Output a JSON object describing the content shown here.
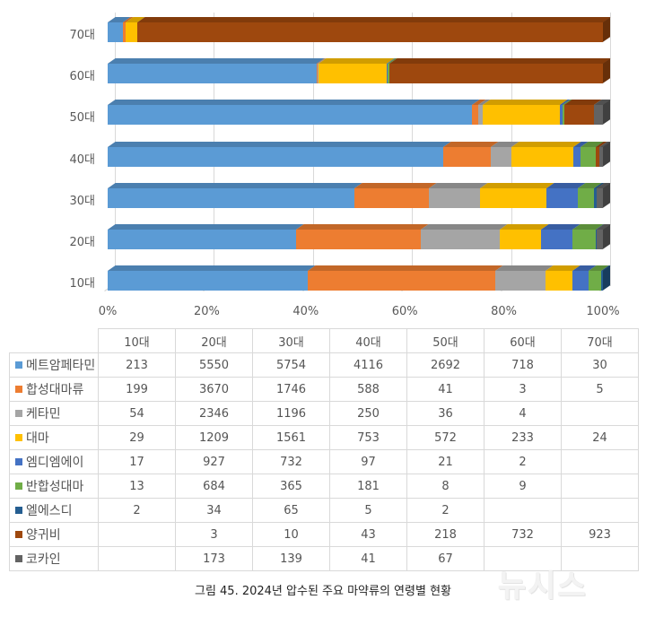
{
  "caption": "그림 45. 2024년 압수된 주요 마약류의 연령별 현황",
  "watermark": "뉴시스",
  "table": {
    "columns": [
      "10대",
      "20대",
      "30대",
      "40대",
      "50대",
      "60대",
      "70대"
    ],
    "rows": [
      {
        "name": "메트암페타민",
        "color": "#5b9bd5",
        "values": [
          "213",
          "5550",
          "5754",
          "4116",
          "2692",
          "718",
          "30"
        ]
      },
      {
        "name": "합성대마류",
        "color": "#ed7d31",
        "values": [
          "199",
          "3670",
          "1746",
          "588",
          "41",
          "3",
          "5"
        ]
      },
      {
        "name": "케타민",
        "color": "#a5a5a5",
        "values": [
          "54",
          "2346",
          "1196",
          "250",
          "36",
          "4",
          ""
        ]
      },
      {
        "name": "대마",
        "color": "#ffc000",
        "values": [
          "29",
          "1209",
          "1561",
          "753",
          "572",
          "233",
          "24"
        ]
      },
      {
        "name": "엠디엠에이",
        "color": "#4472c4",
        "values": [
          "17",
          "927",
          "732",
          "97",
          "21",
          "2",
          ""
        ]
      },
      {
        "name": "반합성대마",
        "color": "#70ad47",
        "values": [
          "13",
          "684",
          "365",
          "181",
          "8",
          "9",
          ""
        ]
      },
      {
        "name": "엘에스디",
        "color": "#255e91",
        "values": [
          "2",
          "34",
          "65",
          "5",
          "2",
          "",
          ""
        ]
      },
      {
        "name": "양귀비",
        "color": "#9e480e",
        "values": [
          "",
          "3",
          "10",
          "43",
          "218",
          "732",
          "923"
        ]
      },
      {
        "name": "코카인",
        "color": "#636363",
        "values": [
          "",
          "173",
          "139",
          "41",
          "67",
          "",
          ""
        ]
      }
    ]
  },
  "chart_data": {
    "type": "bar",
    "subtype": "100% stacked horizontal bar (3D)",
    "title": "",
    "caption": "그림 45. 2024년 압수된 주요 마약류의 연령별 현황",
    "categories": [
      "10대",
      "20대",
      "30대",
      "40대",
      "50대",
      "60대",
      "70대"
    ],
    "x_ticks": [
      "0%",
      "20%",
      "40%",
      "60%",
      "80%",
      "100%"
    ],
    "xlim": [
      0,
      100
    ],
    "grid": true,
    "legend_position": "table-below",
    "series": [
      {
        "name": "메트암페타민",
        "color": "#5b9bd5",
        "values": [
          213,
          5550,
          5754,
          4116,
          2692,
          718,
          30
        ]
      },
      {
        "name": "합성대마류",
        "color": "#ed7d31",
        "values": [
          199,
          3670,
          1746,
          588,
          41,
          3,
          5
        ]
      },
      {
        "name": "케타민",
        "color": "#a5a5a5",
        "values": [
          54,
          2346,
          1196,
          250,
          36,
          4,
          0
        ]
      },
      {
        "name": "대마",
        "color": "#ffc000",
        "values": [
          29,
          1209,
          1561,
          753,
          572,
          233,
          24
        ]
      },
      {
        "name": "엠디엠에이",
        "color": "#4472c4",
        "values": [
          17,
          927,
          732,
          97,
          21,
          2,
          0
        ]
      },
      {
        "name": "반합성대마",
        "color": "#70ad47",
        "values": [
          13,
          684,
          365,
          181,
          8,
          9,
          0
        ]
      },
      {
        "name": "엘에스디",
        "color": "#255e91",
        "values": [
          2,
          34,
          65,
          5,
          2,
          0,
          0
        ]
      },
      {
        "name": "양귀비",
        "color": "#9e480e",
        "values": [
          0,
          3,
          10,
          43,
          218,
          732,
          923
        ]
      },
      {
        "name": "코카인",
        "color": "#636363",
        "values": [
          0,
          173,
          139,
          41,
          67,
          0,
          0
        ]
      }
    ]
  }
}
